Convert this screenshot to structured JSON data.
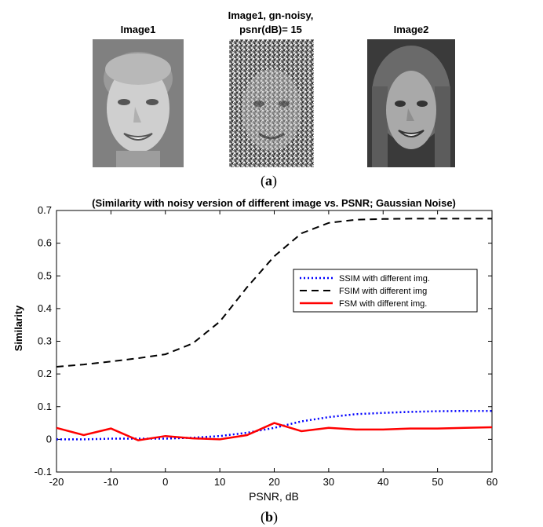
{
  "panel_a": {
    "images": [
      {
        "title": "Image1"
      },
      {
        "title_line1": "Image1, gn-noisy,",
        "title_line2": "psnr(dB)= 15"
      },
      {
        "title": "Image2"
      }
    ],
    "caption_open": "(",
    "caption_letter": "a",
    "caption_close": ")"
  },
  "panel_b": {
    "caption_open": "(",
    "caption_letter": "b",
    "caption_close": ")"
  },
  "chart_data": {
    "type": "line",
    "title": "(Similarity with noisy version of different image vs. PSNR; Gaussian Noise)",
    "xlabel": "PSNR, dB",
    "ylabel": "Similarity",
    "xlim": [
      -20,
      60
    ],
    "ylim": [
      -0.1,
      0.7
    ],
    "xticks": [
      -20,
      -10,
      0,
      10,
      20,
      30,
      40,
      50,
      60
    ],
    "yticks": [
      -0.1,
      0,
      0.1,
      0.2,
      0.3,
      0.4,
      0.5,
      0.6,
      0.7
    ],
    "ytick_labels": [
      "-0.1",
      "0",
      "0.1",
      "0.2",
      "0.3",
      "0.4",
      "0.5",
      "0.6",
      "0.7"
    ],
    "grid": false,
    "legend_position": "center-right",
    "x": [
      -20,
      -15,
      -10,
      -5,
      0,
      5,
      10,
      15,
      20,
      25,
      30,
      35,
      40,
      45,
      50,
      55,
      60
    ],
    "series": [
      {
        "name": "SSIM with different img.",
        "color": "#0000ff",
        "style": "dotted",
        "values": [
          0.0,
          0.0,
          0.002,
          0.002,
          0.002,
          0.005,
          0.01,
          0.02,
          0.035,
          0.055,
          0.068,
          0.077,
          0.081,
          0.084,
          0.086,
          0.087,
          0.087
        ]
      },
      {
        "name": "FSIM with different img",
        "color": "#000000",
        "style": "dashed",
        "values": [
          0.222,
          0.229,
          0.238,
          0.248,
          0.26,
          0.293,
          0.36,
          0.465,
          0.56,
          0.63,
          0.662,
          0.672,
          0.674,
          0.675,
          0.675,
          0.675,
          0.675
        ]
      },
      {
        "name": "FSM with different img.",
        "color": "#ff0000",
        "style": "solid",
        "values": [
          0.035,
          0.013,
          0.033,
          -0.003,
          0.01,
          0.003,
          0.0,
          0.013,
          0.05,
          0.025,
          0.035,
          0.03,
          0.03,
          0.033,
          0.033,
          0.035,
          0.037
        ]
      }
    ]
  }
}
